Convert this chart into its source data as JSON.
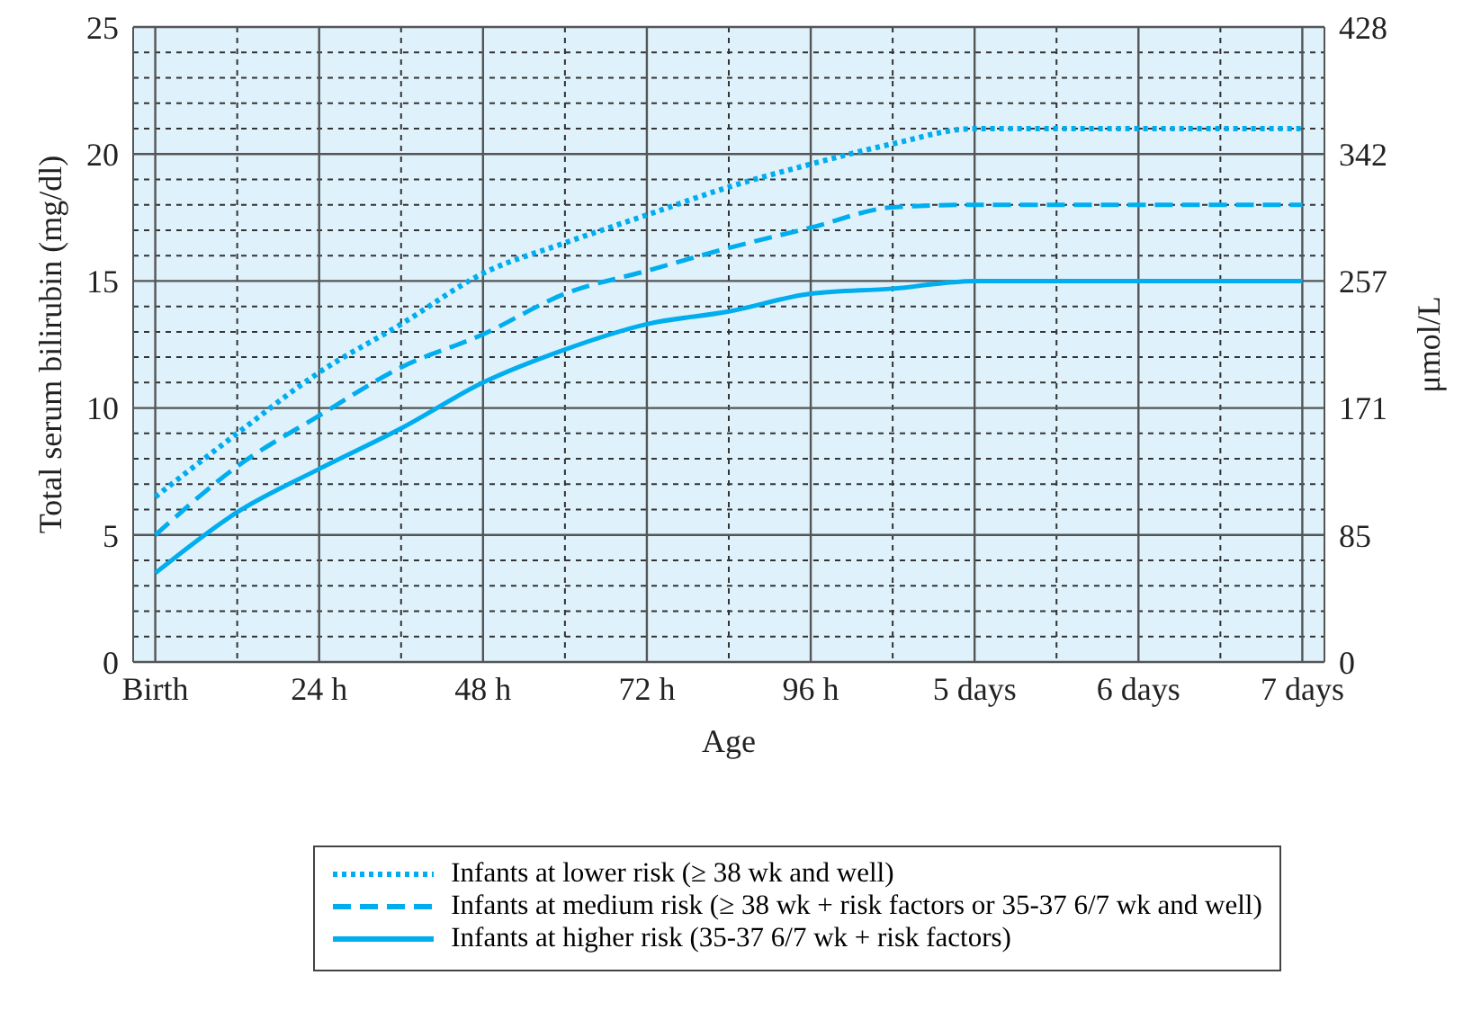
{
  "chart_data": {
    "type": "line",
    "xlabel": "Age",
    "ylabel": "Total serum bilirubin (mg/dl)",
    "y2label": "μmol/L",
    "categories": [
      "Birth",
      null,
      "24 h",
      null,
      "48 h",
      null,
      "72 h",
      null,
      "96 h",
      null,
      "5 days",
      null,
      "6 days",
      null,
      "7 days"
    ],
    "ylim": [
      0,
      25
    ],
    "yticks": [
      0,
      {
        "value": 1,
        "label": null
      },
      {
        "value": 2,
        "label": null
      },
      {
        "value": 3,
        "label": null
      },
      {
        "value": 4,
        "label": null
      },
      5,
      {
        "value": 6,
        "label": null
      },
      {
        "value": 7,
        "label": null
      },
      {
        "value": 8,
        "label": null
      },
      {
        "value": 9,
        "label": null
      },
      10,
      {
        "value": 11,
        "label": null
      },
      {
        "value": 12,
        "label": null
      },
      {
        "value": 13,
        "label": null
      },
      {
        "value": 14,
        "label": null
      },
      15,
      {
        "value": 16,
        "label": null
      },
      {
        "value": 17,
        "label": null
      },
      {
        "value": 18,
        "label": null
      },
      {
        "value": 19,
        "label": null
      },
      20,
      {
        "value": 21,
        "label": null
      },
      {
        "value": 22,
        "label": null
      },
      {
        "value": 23,
        "label": null
      },
      {
        "value": 24,
        "label": null
      },
      25
    ],
    "y2lim": [
      0,
      427.5
    ],
    "y2ticks": [
      0,
      {
        "value": 85.5,
        "label": "85"
      },
      171,
      {
        "value": 256.5,
        "label": "257"
      },
      342,
      {
        "value": 427.5,
        "label": "428"
      }
    ],
    "series": [
      {
        "name": "Infants at lower risk (≥ 38 wk and well)",
        "color": "#00aeef",
        "line_style": "dotted",
        "values": [
          6.5,
          9.0,
          11.4,
          13.3,
          15.3,
          16.5,
          17.6,
          18.7,
          19.6,
          20.4,
          21,
          21,
          21,
          21,
          21
        ]
      },
      {
        "name": "Infants at medium risk (≥ 38 wk + risk factors or 35-37 6/7 wk and well)",
        "color": "#00aeef",
        "line_style": "dashed",
        "values": [
          5.0,
          7.7,
          9.7,
          11.6,
          12.9,
          14.5,
          15.4,
          16.3,
          17.1,
          17.9,
          18,
          18,
          18,
          18,
          18
        ]
      },
      {
        "name": "Infants at higher risk (35-37 6/7 wk + risk factors)",
        "color": "#00aeef",
        "line_style": "solid",
        "values": [
          3.5,
          5.9,
          7.6,
          9.2,
          11.0,
          12.3,
          13.3,
          13.8,
          14.5,
          14.7,
          15,
          15,
          15,
          15,
          15
        ]
      }
    ],
    "grid": true,
    "legend": "bottom",
    "marker": "none"
  }
}
